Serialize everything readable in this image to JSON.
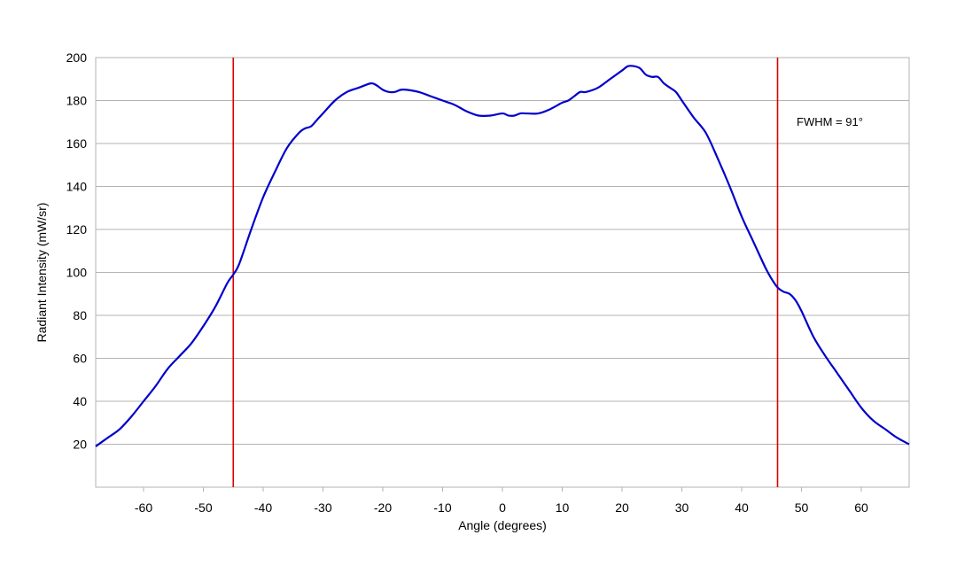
{
  "chart_data": {
    "type": "line",
    "title": "",
    "xlabel": "Angle (degrees)",
    "ylabel": "Radiant Intensity (mW/sr)",
    "xlim": [
      -68,
      68
    ],
    "ylim": [
      0,
      200
    ],
    "x_ticks": [
      -60,
      -50,
      -40,
      -30,
      -20,
      -10,
      0,
      10,
      20,
      30,
      40,
      50,
      60
    ],
    "y_ticks": [
      20,
      40,
      60,
      80,
      100,
      120,
      140,
      160,
      180,
      200
    ],
    "grid": "horizontal",
    "legend": "none",
    "series": [
      {
        "color": "#0000cc",
        "x": [
          -68,
          -66,
          -64,
          -62,
          -60,
          -58,
          -56,
          -54,
          -52,
          -50,
          -48,
          -46,
          -45,
          -44,
          -42,
          -40,
          -38,
          -36,
          -34,
          -33,
          -32,
          -31,
          -30,
          -28,
          -26,
          -24,
          -22,
          -21,
          -20,
          -19,
          -18,
          -17,
          -16,
          -14,
          -12,
          -10,
          -8,
          -6,
          -4,
          -2,
          0,
          1,
          2,
          3,
          4,
          6,
          8,
          10,
          11,
          12,
          13,
          14,
          16,
          18,
          20,
          21,
          22,
          23,
          24,
          25,
          26,
          27,
          28,
          29,
          30,
          32,
          34,
          36,
          38,
          40,
          42,
          44,
          45,
          46,
          47,
          48,
          49,
          50,
          52,
          54,
          56,
          58,
          60,
          62,
          64,
          66,
          68
        ],
        "y": [
          19,
          23,
          27,
          33,
          40,
          47,
          55,
          61,
          67,
          75,
          84,
          95,
          99,
          104,
          120,
          135,
          147,
          158,
          165,
          167,
          168,
          171,
          174,
          180,
          184,
          186,
          188,
          187,
          185,
          184,
          184,
          185,
          185,
          184,
          182,
          180,
          178,
          175,
          173,
          173,
          174,
          173,
          173,
          174,
          174,
          174,
          176,
          179,
          180,
          182,
          184,
          184,
          186,
          190,
          194,
          196,
          196,
          195,
          192,
          191,
          191,
          188,
          186,
          184,
          180,
          172,
          165,
          153,
          140,
          126,
          114,
          102,
          97,
          93,
          91,
          90,
          87,
          82,
          70,
          61,
          53,
          45,
          37,
          31,
          27,
          23,
          20
        ]
      }
    ],
    "vlines": [
      {
        "x": -45,
        "color": "#dd0000"
      },
      {
        "x": 46,
        "color": "#dd0000"
      }
    ],
    "annotation": {
      "text": "FWHM = 91°",
      "x": 48,
      "y": 170
    }
  }
}
